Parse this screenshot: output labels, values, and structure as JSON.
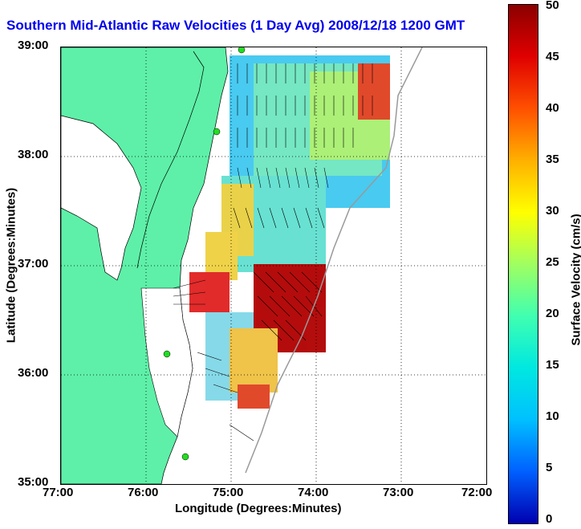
{
  "title": "Southern Mid-Atlantic Raw Velocities (1 Day Avg) 2008/12/18 1200 GMT",
  "x_axis": {
    "label": "Longitude (Degrees:Minutes)",
    "ticks": [
      "77:00",
      "76:00",
      "75:00",
      "74:00",
      "73:00",
      "72:00"
    ]
  },
  "y_axis": {
    "label": "Latitude (Degrees:Minutes)",
    "ticks": [
      "39:00",
      "38:00",
      "37:00",
      "36:00",
      "35:00"
    ]
  },
  "colorbar": {
    "label": "Surface Velocity (cm/s)",
    "ticks": [
      "50",
      "45",
      "40",
      "35",
      "30",
      "25",
      "20",
      "15",
      "10",
      "5",
      "0"
    ],
    "range": [
      0,
      50
    ]
  },
  "colors": {
    "land": "#5ef0a8",
    "water": "#ffffff",
    "title": "#0000ee",
    "station": "#22dd22"
  },
  "grid": "dotted"
}
